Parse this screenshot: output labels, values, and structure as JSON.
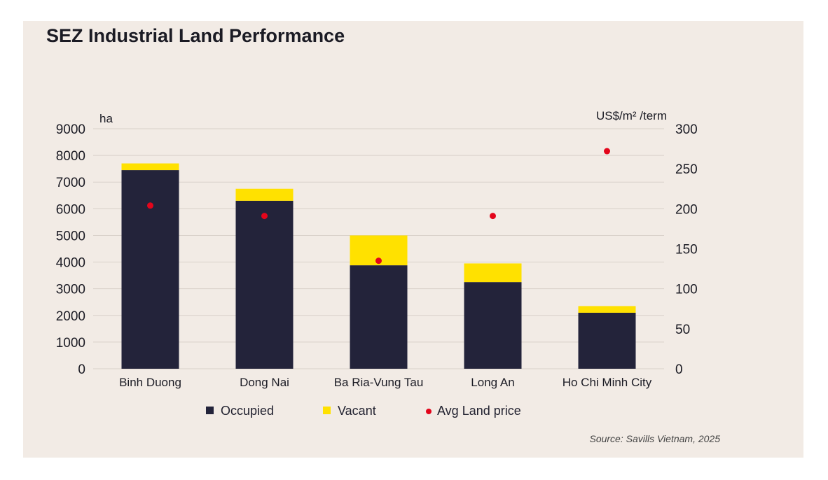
{
  "chart_data": {
    "type": "bar",
    "title": "SEZ Industrial Land Performance",
    "ylabel_left": "ha",
    "ylabel_right": "US$/m² /term",
    "categories": [
      "Binh Duong",
      "Dong Nai",
      "Ba Ria-Vung Tau",
      "Long An",
      "Ho Chi Minh City"
    ],
    "series": [
      {
        "name": "Occupied",
        "kind": "stacked-bar",
        "axis": "left",
        "values": [
          7450,
          6300,
          3880,
          3250,
          2100
        ]
      },
      {
        "name": "Vacant",
        "kind": "stacked-bar",
        "axis": "left",
        "values": [
          250,
          450,
          1120,
          700,
          250
        ]
      },
      {
        "name": "Avg Land price",
        "kind": "scatter",
        "axis": "right",
        "values": [
          204,
          191,
          135,
          191,
          272
        ]
      }
    ],
    "ylim_left": [
      0,
      9000
    ],
    "yticks_left": [
      "0",
      "1000",
      "2000",
      "3000",
      "4000",
      "5000",
      "6000",
      "7000",
      "8000",
      "9000"
    ],
    "ylim_right": [
      0,
      300
    ],
    "yticks_right": [
      "0",
      "50",
      "100",
      "150",
      "200",
      "250",
      "300"
    ],
    "legend_position": "bottom",
    "grid": true,
    "colors": {
      "Occupied": "#23233a",
      "Vacant": "#ffe100",
      "Avg Land price": "#e3051b",
      "grid": "#d8d0c9",
      "background": "#f2ebe5"
    },
    "source": "Source: Savills Vietnam, 2025"
  }
}
